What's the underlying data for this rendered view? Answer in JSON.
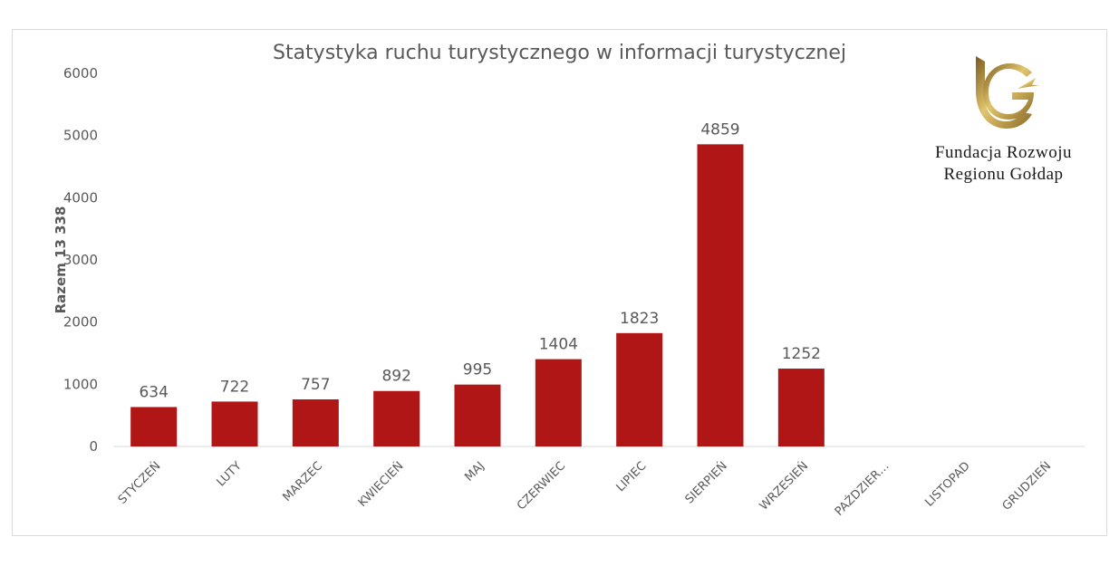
{
  "colors": {
    "bar": "#b01616",
    "grid": "#d9d9d9",
    "text": "#595959",
    "logo_gold": "#b8963e"
  },
  "logo": {
    "line1": "Fundacja Rozwoju",
    "line2": "Regionu Gołdap",
    "icon": "gold-g-arrow-logo"
  },
  "chart_data": {
    "type": "bar",
    "title": "Statystyka ruchu turystycznego w informacji turystycznej",
    "ylabel": "Razem 13 338",
    "xlabel": "",
    "ylim": [
      0,
      6000
    ],
    "yticks": [
      0,
      1000,
      2000,
      3000,
      4000,
      5000,
      6000
    ],
    "categories": [
      "STYCZEŃ",
      "LUTY",
      "MARZEC",
      "KWIECIEŃ",
      "MAJ",
      "CZERWIEC",
      "LIPIEC",
      "SIERPIEŃ",
      "WRZESIEŃ",
      "PAŹDZIER…",
      "LISTOPAD",
      "GRUDZIEŃ"
    ],
    "values": [
      634,
      722,
      757,
      892,
      995,
      1404,
      1823,
      4859,
      1252,
      null,
      null,
      null
    ],
    "grid": false,
    "legend": "none"
  }
}
